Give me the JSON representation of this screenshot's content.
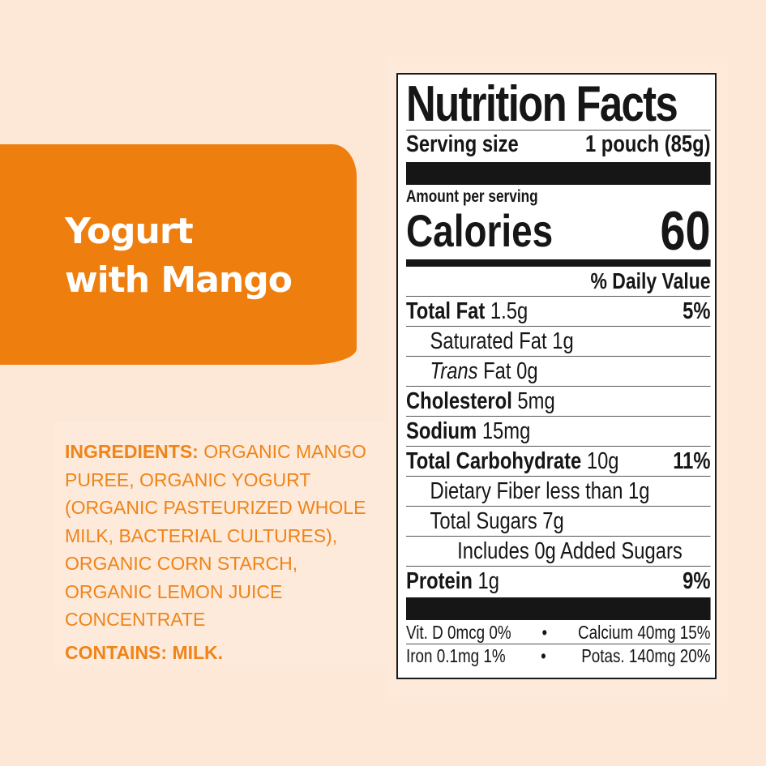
{
  "product": {
    "title_line1": "Yogurt",
    "title_line2": "with Mango"
  },
  "ingredients": {
    "label": "INGREDIENTS:",
    "text": "ORGANIC MANGO PUREE, ORGANIC YOGURT (ORGANIC PASTEURIZED WHOLE MILK, BACTERIAL CULTURES), ORGANIC CORN STARCH, ORGANIC LEMON JUICE CONCENTRATE",
    "contains": "CONTAINS: MILK."
  },
  "colors": {
    "brand_orange": "#ee7f0f",
    "text_orange": "#ef8418",
    "background": "#fde7d6"
  },
  "nutrition": {
    "title": "Nutrition Facts",
    "serving_label": "Serving size",
    "serving_value": "1 pouch (85g)",
    "amount_per_serving": "Amount per serving",
    "calories_label": "Calories",
    "calories_value": "60",
    "daily_value_header": "% Daily Value",
    "rows": [
      {
        "name": "Total Fat",
        "amount": "1.5g",
        "dv": "5%"
      },
      {
        "name": "Saturated Fat",
        "amount": "1g"
      },
      {
        "name": "Trans",
        "suffix": "Fat 0g"
      },
      {
        "name": "Cholesterol",
        "amount": "5mg"
      },
      {
        "name": "Sodium",
        "amount": "15mg"
      },
      {
        "name": "Total Carbohydrate",
        "amount": "10g",
        "dv": "11%"
      },
      {
        "name": "Dietary Fiber less than 1g"
      },
      {
        "name": "Total Sugars 7g"
      },
      {
        "name": "Includes 0g Added Sugars"
      },
      {
        "name": "Protein",
        "amount": "1g",
        "dv": "9%"
      }
    ],
    "micro": [
      {
        "left": "Vit. D 0mcg 0%",
        "right": "Calcium 40mg 15%"
      },
      {
        "left": "Iron 0.1mg 1%",
        "right": "Potas. 140mg 20%"
      }
    ],
    "bullet": "•"
  }
}
